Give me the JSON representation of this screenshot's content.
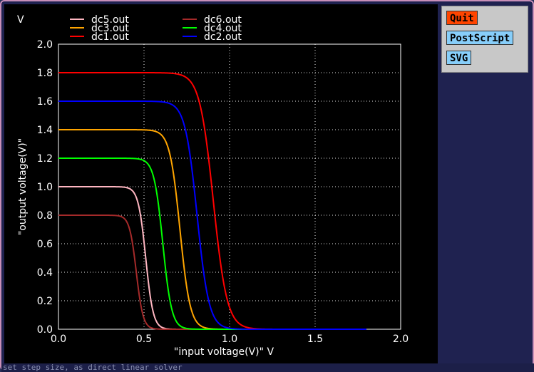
{
  "toolbar": {
    "quit_label": "Quit",
    "postscript_label": "PostScript",
    "svg_label": "SVG",
    "quit_color": "#ff4500",
    "button_color": "#87cefa"
  },
  "status": {
    "text": "set step size, as direct linear solver"
  },
  "chart_data": {
    "type": "line",
    "title": "",
    "y_unit_label": "V",
    "xlabel": "\"input voltage(V)\"  V",
    "ylabel": "\"output voltage(V)\"",
    "xlim": [
      0,
      2.0
    ],
    "ylim": [
      0,
      2.0
    ],
    "xticks": [
      "0.0",
      "0.5",
      "1.0",
      "1.5",
      "2.0"
    ],
    "yticks": [
      "0.0",
      "0.2",
      "0.4",
      "0.6",
      "0.8",
      "1.0",
      "1.2",
      "1.4",
      "1.6",
      "1.8",
      "2.0"
    ],
    "grid": true,
    "legend_position": "top",
    "series": [
      {
        "name": "dc5.out",
        "color": "#ffb6c1",
        "vdd": 1.0,
        "vth": 0.51,
        "width": 0.022,
        "x": [
          0,
          0.3,
          0.4,
          0.45,
          0.48,
          0.5,
          0.52,
          0.55,
          0.6,
          0.7
        ],
        "y": [
          1.0,
          1.0,
          1.0,
          0.99,
          0.95,
          0.6,
          0.2,
          0.05,
          0.01,
          0.0
        ]
      },
      {
        "name": "dc6.out",
        "color": "#a52a2a",
        "vdd": 0.8,
        "vth": 0.455,
        "width": 0.02,
        "x": [
          0,
          0.3,
          0.4,
          0.43,
          0.45,
          0.47,
          0.5,
          0.55,
          0.7
        ],
        "y": [
          0.8,
          0.8,
          0.79,
          0.75,
          0.5,
          0.15,
          0.03,
          0.0,
          0.0
        ]
      },
      {
        "name": "dc3.out",
        "color": "#ffa500",
        "vdd": 1.4,
        "vth": 0.71,
        "width": 0.03,
        "x": [
          0,
          0.5,
          0.6,
          0.65,
          0.68,
          0.71,
          0.74,
          0.78,
          0.85,
          1.0
        ],
        "y": [
          1.4,
          1.4,
          1.39,
          1.35,
          1.2,
          0.7,
          0.2,
          0.05,
          0.01,
          0.0
        ]
      },
      {
        "name": "dc4.out",
        "color": "#00ff00",
        "vdd": 1.2,
        "vth": 0.61,
        "width": 0.026,
        "x": [
          0,
          0.4,
          0.5,
          0.56,
          0.59,
          0.61,
          0.64,
          0.68,
          0.75,
          0.9
        ],
        "y": [
          1.2,
          1.2,
          1.19,
          1.15,
          0.95,
          0.6,
          0.2,
          0.05,
          0.01,
          0.0
        ]
      },
      {
        "name": "dc1.out",
        "color": "#ff0000",
        "vdd": 1.8,
        "vth": 0.905,
        "width": 0.04,
        "x": [
          0,
          0.6,
          0.7,
          0.8,
          0.86,
          0.9,
          0.95,
          1.0,
          1.1,
          1.3,
          1.8
        ],
        "y": [
          1.8,
          1.8,
          1.78,
          1.7,
          1.4,
          0.95,
          0.35,
          0.1,
          0.03,
          0.0,
          0.0
        ]
      },
      {
        "name": "dc2.out",
        "color": "#0000ff",
        "vdd": 1.6,
        "vth": 0.81,
        "width": 0.035,
        "x": [
          0,
          0.6,
          0.7,
          0.75,
          0.78,
          0.81,
          0.85,
          0.9,
          1.0,
          1.2
        ],
        "y": [
          1.6,
          1.6,
          1.58,
          1.5,
          1.3,
          0.8,
          0.25,
          0.06,
          0.01,
          0.0
        ]
      }
    ]
  }
}
